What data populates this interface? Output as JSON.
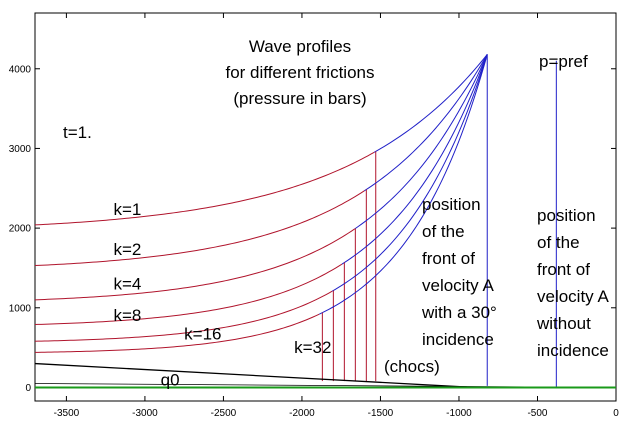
{
  "chart_data": {
    "type": "line",
    "title": [
      "Wave profiles",
      "for different frictions",
      "(pressure in bars)"
    ],
    "xlim": [
      -3700,
      0
    ],
    "ylim": [
      -170,
      4700
    ],
    "x_ticks": [
      -3500,
      -3000,
      -2500,
      -2000,
      -1500,
      -1000,
      -500,
      0
    ],
    "y_ticks": [
      0,
      1000,
      2000,
      3000,
      4000
    ],
    "colors": {
      "profile": "#2020c8",
      "red": "#b0142c",
      "green": "#1a9a1a",
      "black": "#000000"
    },
    "front_A_x": -820,
    "peak_y": 4180,
    "profiles": [
      {
        "label": "k=1",
        "y_start": 2040,
        "shock_x": -1530
      },
      {
        "label": "k=2",
        "y_start": 1530,
        "shock_x": -1590
      },
      {
        "label": "k=4",
        "y_start": 1100,
        "shock_x": -1660
      },
      {
        "label": "k=8",
        "y_start": 790,
        "shock_x": -1730
      },
      {
        "label": "k=16",
        "y_start": 580,
        "shock_x": -1800
      },
      {
        "label": "k=32",
        "y_start": 440,
        "shock_x": -1870
      }
    ],
    "q0_line": {
      "label": "q0",
      "y": 0
    },
    "black_line": {
      "x": [
        -3700,
        -950
      ],
      "y": [
        300,
        5
      ]
    },
    "thin_line": {
      "x": [
        -3700,
        0
      ],
      "y": [
        50,
        0
      ]
    },
    "pref_line": {
      "label": "p=pref",
      "x": -380,
      "y": [
        0,
        4100
      ]
    },
    "annotations": {
      "t": "t=1.",
      "position_A": [
        "position",
        " of the",
        "front of",
        "velocity A",
        "with a 30°",
        "incidence"
      ],
      "chocs": "(chocs)",
      "position_no": [
        "position",
        " of the",
        "front of",
        "velocity A",
        "without",
        " incidence"
      ]
    }
  }
}
